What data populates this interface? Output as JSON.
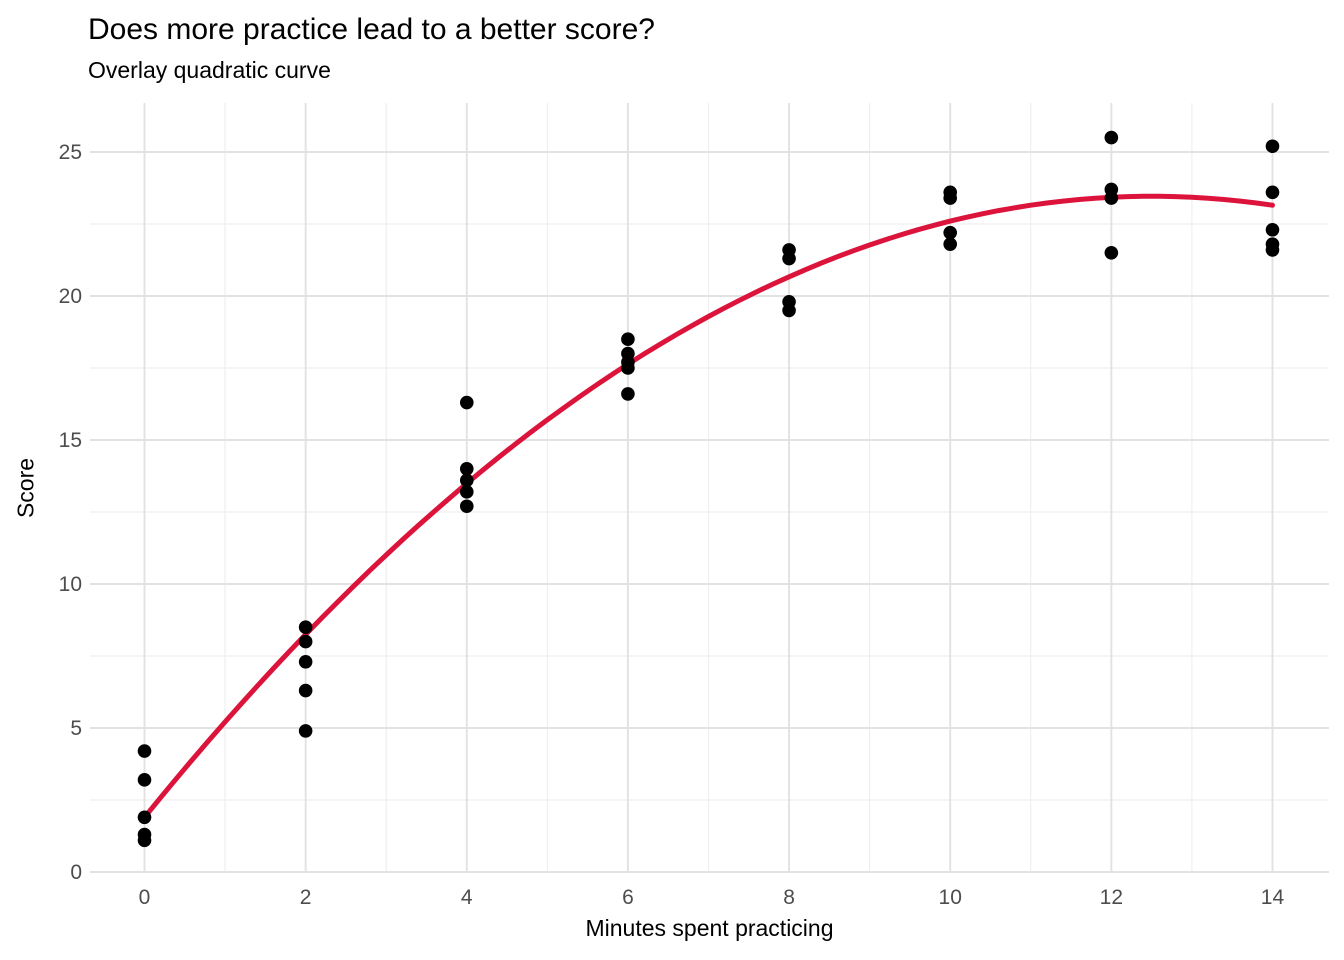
{
  "header": {
    "title": "Does more practice lead to a better score?",
    "subtitle": "Overlay quadratic curve"
  },
  "chart_data": {
    "type": "scatter",
    "title": "Does more practice lead to a better score?",
    "subtitle": "Overlay quadratic curve",
    "xlabel": "Minutes spent practicing",
    "ylabel": "Score",
    "xlim": [
      -0.7,
      14.7
    ],
    "ylim": [
      -0.1,
      26.8
    ],
    "x_major_ticks": [
      0,
      2,
      4,
      6,
      8,
      10,
      12,
      14
    ],
    "y_major_ticks": [
      0,
      5,
      10,
      15,
      20,
      25
    ],
    "x_minor_ticks": [
      1,
      3,
      5,
      7,
      9,
      11,
      13
    ],
    "y_minor_ticks": [
      2.5,
      7.5,
      12.5,
      17.5,
      22.5
    ],
    "grid": true,
    "legend": "none",
    "points": [
      {
        "x": 0,
        "scores": [
          4.2,
          3.2,
          1.9,
          1.3,
          1.1
        ]
      },
      {
        "x": 2,
        "scores": [
          8.5,
          8.0,
          7.3,
          6.3,
          4.9
        ]
      },
      {
        "x": 4,
        "scores": [
          16.3,
          14.0,
          13.6,
          13.2,
          12.7
        ]
      },
      {
        "x": 6,
        "scores": [
          18.5,
          18.0,
          17.7,
          17.5,
          16.6
        ]
      },
      {
        "x": 8,
        "scores": [
          21.6,
          21.3,
          19.8,
          19.5
        ]
      },
      {
        "x": 10,
        "scores": [
          23.6,
          23.4,
          22.2,
          21.8
        ]
      },
      {
        "x": 12,
        "scores": [
          25.5,
          23.7,
          23.4,
          21.5
        ]
      },
      {
        "x": 14,
        "scores": [
          25.2,
          23.6,
          22.3,
          21.8,
          21.6
        ]
      }
    ],
    "curve": {
      "kind": "quadratic",
      "equation": "y = 1.9 + 3.45x - 0.138x^2",
      "a": 1.9,
      "b": 3.45,
      "c": -0.138,
      "x_start": 0,
      "x_end": 14
    },
    "colors": {
      "point": "#000000",
      "curve": "#DC143C",
      "grid_major": "#E2E2E2",
      "grid_minor": "#EFEFEF",
      "tick_label": "#4D4D4D",
      "text": "#000000",
      "background": "#FFFFFF"
    }
  }
}
